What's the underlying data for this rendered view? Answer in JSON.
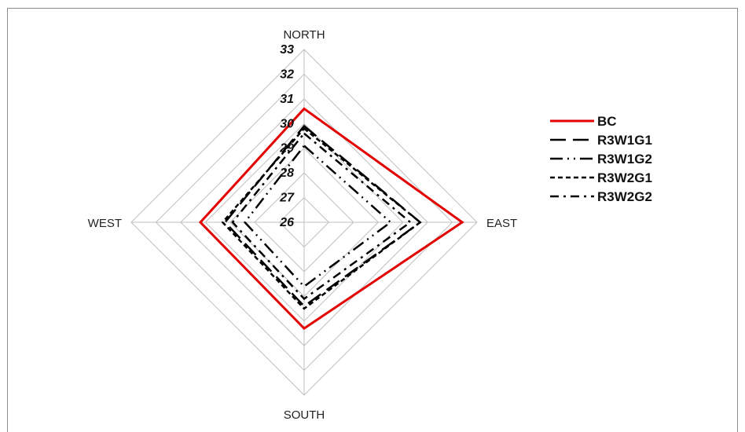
{
  "chart_data": {
    "type": "radar",
    "title": "",
    "categories": [
      "NORTH",
      "EAST",
      "SOUTH",
      "WEST"
    ],
    "rlim": [
      26,
      33
    ],
    "ticks": [
      "26",
      "27",
      "28",
      "29",
      "30",
      "31",
      "32",
      "33"
    ],
    "grid": true,
    "legend_position": "right",
    "series": [
      {
        "name": "BC",
        "values": [
          30.6,
          32.4,
          30.3,
          30.2
        ],
        "color": "#e30000",
        "style": "solid"
      },
      {
        "name": "R3W1G1",
        "values": [
          29.9,
          30.7,
          29.4,
          29.2
        ],
        "color": "#000000",
        "style": "long-dash"
      },
      {
        "name": "R3W1G2",
        "values": [
          29.1,
          29.5,
          28.6,
          28.4
        ],
        "color": "#000000",
        "style": "long-dash-dot-dot"
      },
      {
        "name": "R3W2G1",
        "values": [
          29.8,
          30.7,
          29.5,
          29.3
        ],
        "color": "#000000",
        "style": "short-dash"
      },
      {
        "name": "R3W2G2",
        "values": [
          29.6,
          30.3,
          29.1,
          28.9
        ],
        "color": "#000000",
        "style": "dash-dot"
      }
    ]
  }
}
